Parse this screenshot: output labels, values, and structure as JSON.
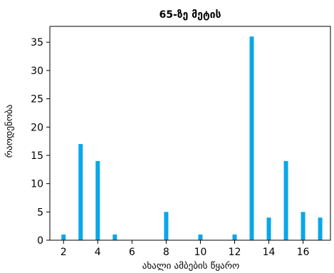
{
  "chart_data": {
    "type": "bar",
    "title": "65-ზე მეტის",
    "xlabel": "ახალი ამბების წყარო",
    "ylabel": "რაოდენობა",
    "bar_color": "#0aa7e8",
    "x": [
      2,
      3,
      4,
      5,
      8,
      10,
      12,
      13,
      14,
      15,
      16,
      17
    ],
    "values": [
      1,
      17,
      14,
      1,
      5,
      1,
      1,
      36,
      4,
      14,
      5,
      4
    ],
    "xlim": [
      1.2,
      17.6
    ],
    "ylim": [
      0,
      37.8
    ],
    "xticks": [
      "2",
      "4",
      "6",
      "8",
      "10",
      "12",
      "14",
      "16"
    ],
    "yticks": [
      "0",
      "5",
      "10",
      "15",
      "20",
      "25",
      "30",
      "35"
    ],
    "grid": false,
    "legend": "none"
  }
}
